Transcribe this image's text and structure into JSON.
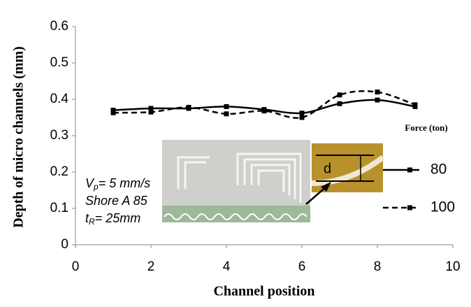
{
  "chart_data": {
    "type": "line",
    "x_label": "Channel position",
    "y_label": "Depth of micro channels (mm)",
    "x": [
      1,
      2,
      3,
      4,
      5,
      6,
      7,
      8,
      9
    ],
    "series": [
      {
        "name": "80",
        "color": "#000000",
        "dash": false,
        "values": [
          0.37,
          0.375,
          0.375,
          0.38,
          0.372,
          0.362,
          0.388,
          0.398,
          0.38
        ]
      },
      {
        "name": "100",
        "color": "#000000",
        "dash": true,
        "values": [
          0.363,
          0.365,
          0.378,
          0.36,
          0.368,
          0.35,
          0.412,
          0.42,
          0.385
        ]
      }
    ],
    "legend_title": "Force (ton)",
    "xlim": [
      0,
      10
    ],
    "xticks": [
      0,
      2,
      4,
      6,
      8,
      10
    ],
    "ylim": [
      0,
      0.6
    ],
    "yticks": [
      0,
      0.1,
      0.2,
      0.3,
      0.4,
      0.5,
      0.6
    ],
    "annotations": [
      {
        "main": "V",
        "sub": "p",
        "rest": "= 5 mm/s"
      },
      {
        "main": "Shore A 85"
      },
      {
        "main": "t",
        "sub": "R",
        "rest": "= 25mm"
      }
    ],
    "inset_label": "d"
  }
}
